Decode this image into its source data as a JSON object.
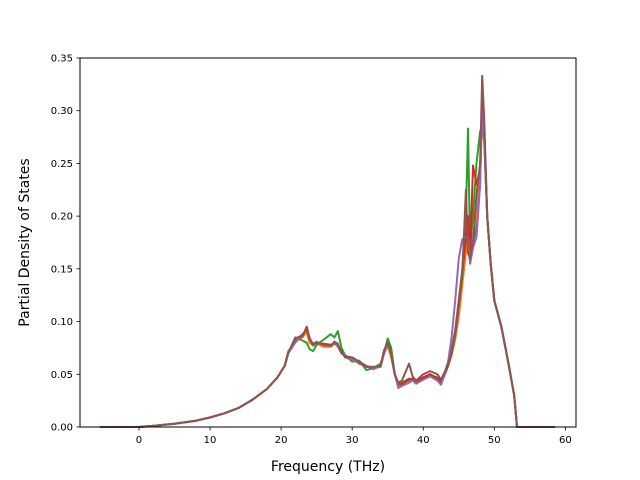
{
  "chart_data": {
    "type": "line",
    "title": "",
    "xlabel": "Frequency (THz)",
    "ylabel": "Partial Density of States",
    "xlim": [
      -8.3,
      61.5
    ],
    "ylim": [
      0,
      0.35
    ],
    "xticks": [
      0,
      10,
      20,
      30,
      40,
      50,
      60
    ],
    "yticks": [
      0.0,
      0.05,
      0.1,
      0.15,
      0.2,
      0.25,
      0.3,
      0.35
    ],
    "xtick_labels": [
      "0",
      "10",
      "20",
      "30",
      "40",
      "50",
      "60"
    ],
    "ytick_labels": [
      "0.00",
      "0.05",
      "0.10",
      "0.15",
      "0.20",
      "0.25",
      "0.30",
      "0.35"
    ],
    "grid": false,
    "legend": "none",
    "x": [
      -5.5,
      0,
      2,
      5,
      8,
      10,
      12,
      14,
      16,
      18,
      19.5,
      20.5,
      21,
      22,
      23,
      23.6,
      24,
      24.5,
      25,
      26,
      27,
      27.5,
      28,
      28.5,
      29,
      30,
      31,
      32,
      33,
      34,
      34.5,
      35,
      35.5,
      36,
      36.5,
      37,
      38,
      38.5,
      39,
      40,
      41,
      42,
      42.5,
      43,
      43.5,
      44,
      44.5,
      45,
      45.5,
      46,
      46.3,
      46.6,
      47,
      47.5,
      48,
      48.3,
      48.6,
      49,
      49.5,
      50,
      51,
      52,
      52.8,
      53.2,
      55,
      58.5
    ],
    "series": [
      {
        "color": "#1f77b4",
        "values": [
          0,
          0,
          0.001,
          0.003,
          0.006,
          0.009,
          0.013,
          0.018,
          0.026,
          0.036,
          0.047,
          0.058,
          0.07,
          0.083,
          0.087,
          0.09,
          0.082,
          0.078,
          0.08,
          0.077,
          0.077,
          0.08,
          0.078,
          0.07,
          0.068,
          0.064,
          0.062,
          0.058,
          0.056,
          0.058,
          0.072,
          0.078,
          0.068,
          0.05,
          0.04,
          0.04,
          0.043,
          0.045,
          0.043,
          0.047,
          0.05,
          0.045,
          0.042,
          0.05,
          0.06,
          0.07,
          0.085,
          0.11,
          0.14,
          0.17,
          0.18,
          0.155,
          0.175,
          0.19,
          0.23,
          0.32,
          0.28,
          0.2,
          0.155,
          0.12,
          0.095,
          0.06,
          0.03,
          0,
          0,
          0
        ]
      },
      {
        "color": "#ff7f0e",
        "values": [
          0,
          0,
          0.001,
          0.003,
          0.006,
          0.009,
          0.013,
          0.018,
          0.026,
          0.036,
          0.047,
          0.058,
          0.072,
          0.081,
          0.085,
          0.09,
          0.08,
          0.077,
          0.079,
          0.076,
          0.076,
          0.079,
          0.077,
          0.071,
          0.067,
          0.063,
          0.061,
          0.057,
          0.057,
          0.057,
          0.07,
          0.077,
          0.066,
          0.05,
          0.041,
          0.041,
          0.044,
          0.046,
          0.043,
          0.047,
          0.05,
          0.046,
          0.042,
          0.049,
          0.058,
          0.068,
          0.083,
          0.105,
          0.135,
          0.165,
          0.19,
          0.16,
          0.18,
          0.2,
          0.24,
          0.31,
          0.27,
          0.2,
          0.155,
          0.12,
          0.095,
          0.06,
          0.03,
          0,
          0,
          0
        ]
      },
      {
        "color": "#2ca02c",
        "values": [
          0,
          0,
          0.001,
          0.003,
          0.006,
          0.009,
          0.013,
          0.018,
          0.026,
          0.036,
          0.047,
          0.058,
          0.07,
          0.085,
          0.082,
          0.08,
          0.074,
          0.072,
          0.078,
          0.083,
          0.088,
          0.085,
          0.091,
          0.075,
          0.068,
          0.062,
          0.063,
          0.054,
          0.056,
          0.06,
          0.07,
          0.084,
          0.075,
          0.05,
          0.04,
          0.042,
          0.046,
          0.044,
          0.042,
          0.045,
          0.049,
          0.047,
          0.043,
          0.05,
          0.062,
          0.074,
          0.092,
          0.12,
          0.15,
          0.2,
          0.283,
          0.17,
          0.2,
          0.25,
          0.28,
          0.285,
          0.27,
          0.2,
          0.155,
          0.12,
          0.095,
          0.06,
          0.03,
          0,
          0,
          0
        ]
      },
      {
        "color": "#d62728",
        "values": [
          0,
          0,
          0.001,
          0.003,
          0.006,
          0.009,
          0.013,
          0.018,
          0.026,
          0.036,
          0.047,
          0.058,
          0.07,
          0.082,
          0.086,
          0.095,
          0.085,
          0.078,
          0.08,
          0.079,
          0.078,
          0.079,
          0.077,
          0.072,
          0.066,
          0.065,
          0.06,
          0.058,
          0.055,
          0.058,
          0.07,
          0.08,
          0.07,
          0.05,
          0.04,
          0.041,
          0.045,
          0.046,
          0.043,
          0.047,
          0.05,
          0.046,
          0.042,
          0.049,
          0.058,
          0.07,
          0.088,
          0.115,
          0.145,
          0.18,
          0.2,
          0.16,
          0.248,
          0.23,
          0.245,
          0.31,
          0.28,
          0.2,
          0.155,
          0.12,
          0.095,
          0.06,
          0.03,
          0,
          0,
          0
        ]
      },
      {
        "color": "#9467bd",
        "values": [
          0,
          0,
          0.001,
          0.003,
          0.006,
          0.009,
          0.013,
          0.018,
          0.026,
          0.036,
          0.047,
          0.058,
          0.07,
          0.08,
          0.088,
          0.092,
          0.084,
          0.079,
          0.081,
          0.078,
          0.077,
          0.08,
          0.076,
          0.07,
          0.068,
          0.064,
          0.061,
          0.058,
          0.056,
          0.057,
          0.071,
          0.079,
          0.068,
          0.05,
          0.037,
          0.039,
          0.042,
          0.044,
          0.041,
          0.045,
          0.048,
          0.044,
          0.04,
          0.049,
          0.062,
          0.085,
          0.12,
          0.16,
          0.178,
          0.18,
          0.18,
          0.155,
          0.17,
          0.18,
          0.23,
          0.3,
          0.27,
          0.2,
          0.155,
          0.12,
          0.095,
          0.06,
          0.03,
          0,
          0,
          0
        ]
      },
      {
        "color": "#8c564b",
        "values": [
          0,
          0,
          0.001,
          0.003,
          0.006,
          0.009,
          0.013,
          0.018,
          0.026,
          0.036,
          0.047,
          0.058,
          0.07,
          0.084,
          0.087,
          0.093,
          0.083,
          0.078,
          0.08,
          0.078,
          0.077,
          0.081,
          0.079,
          0.07,
          0.067,
          0.066,
          0.062,
          0.057,
          0.057,
          0.058,
          0.073,
          0.08,
          0.069,
          0.05,
          0.042,
          0.044,
          0.06,
          0.048,
          0.044,
          0.05,
          0.053,
          0.05,
          0.045,
          0.052,
          0.06,
          0.07,
          0.09,
          0.12,
          0.145,
          0.225,
          0.165,
          0.16,
          0.175,
          0.22,
          0.25,
          0.333,
          0.29,
          0.2,
          0.155,
          0.12,
          0.095,
          0.06,
          0.03,
          0,
          0,
          0
        ]
      }
    ]
  }
}
